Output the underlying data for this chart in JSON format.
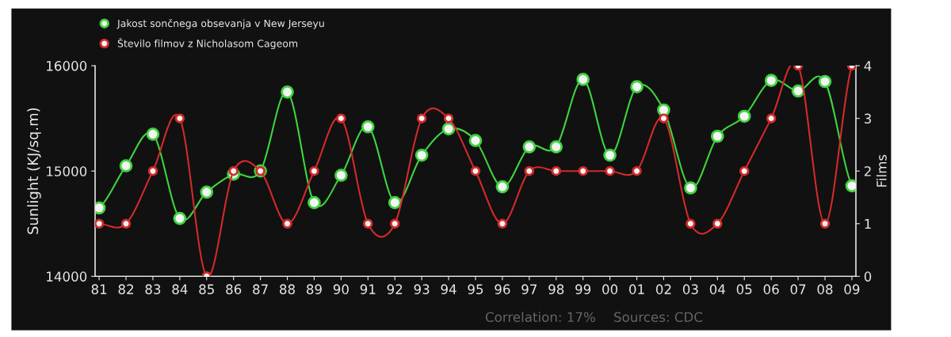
{
  "chart_data": {
    "type": "line",
    "categories": [
      "81",
      "82",
      "83",
      "84",
      "85",
      "86",
      "87",
      "88",
      "89",
      "90",
      "91",
      "92",
      "93",
      "94",
      "95",
      "96",
      "97",
      "98",
      "99",
      "00",
      "01",
      "02",
      "03",
      "04",
      "05",
      "06",
      "07",
      "08",
      "09"
    ],
    "series": [
      {
        "name": "Jakost sončnega obsevanja v New Jerseyu",
        "color": "#3fd43f",
        "values": [
          14650,
          15050,
          15350,
          14550,
          14800,
          14970,
          15000,
          15750,
          14700,
          14960,
          15420,
          14700,
          15150,
          15400,
          15290,
          14850,
          15230,
          15230,
          15870,
          15150,
          15800,
          15580,
          14840,
          15330,
          15520,
          15860,
          15760,
          15850,
          14860
        ]
      },
      {
        "name": "Število filmov z Nicholasom Cageom",
        "color": "#d42a2a",
        "axis": "y2",
        "values": [
          1,
          1,
          2,
          3,
          0,
          2,
          2,
          1,
          2,
          3,
          1,
          1,
          3,
          3,
          2,
          1,
          2,
          2,
          2,
          2,
          2,
          3,
          1,
          1,
          2,
          3,
          4,
          1,
          4
        ]
      }
    ],
    "ylabel": "Sunlight (KJ/sq.m)",
    "y2label": "Films",
    "ylim": [
      14000,
      16000
    ],
    "yticks": [
      14000,
      15000,
      16000
    ],
    "y2lim": [
      0,
      4
    ],
    "y2ticks": [
      0,
      1,
      2,
      3,
      4
    ],
    "annotations": [
      "Correlation: 17%",
      "Sources: CDC"
    ],
    "legend": "top left",
    "grid": false,
    "marker": "circle",
    "line_style": "solid"
  }
}
